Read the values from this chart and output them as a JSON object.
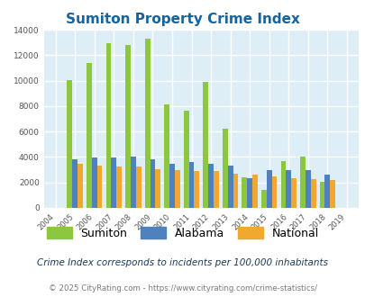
{
  "title": "Sumiton Property Crime Index",
  "years": [
    2004,
    2005,
    2006,
    2007,
    2008,
    2009,
    2010,
    2011,
    2012,
    2013,
    2014,
    2015,
    2016,
    2017,
    2018,
    2019
  ],
  "sumiton": [
    0,
    10050,
    11400,
    12950,
    12800,
    13300,
    8100,
    7650,
    9900,
    6200,
    2400,
    1400,
    3700,
    4000,
    2050,
    0
  ],
  "alabama": [
    0,
    3850,
    3950,
    3950,
    4050,
    3850,
    3500,
    3600,
    3500,
    3350,
    2350,
    3000,
    3000,
    3000,
    2650,
    0
  ],
  "national": [
    0,
    3450,
    3300,
    3250,
    3250,
    3050,
    2950,
    2900,
    2900,
    2700,
    2600,
    2450,
    2350,
    2250,
    2200,
    0
  ],
  "ylim": [
    0,
    14000
  ],
  "yticks": [
    0,
    2000,
    4000,
    6000,
    8000,
    10000,
    12000,
    14000
  ],
  "color_sumiton": "#8dc63f",
  "color_alabama": "#4f81bd",
  "color_national": "#f0a830",
  "bg_color": "#ddeef6",
  "grid_color": "#ffffff",
  "title_color": "#1464a0",
  "subtitle_color": "#1a3a5c",
  "footer_color": "#7a7a7a",
  "subtitle_text": "Crime Index corresponds to incidents per 100,000 inhabitants",
  "footer_text": "© 2025 CityRating.com - https://www.cityrating.com/crime-statistics/",
  "bar_width": 0.27
}
